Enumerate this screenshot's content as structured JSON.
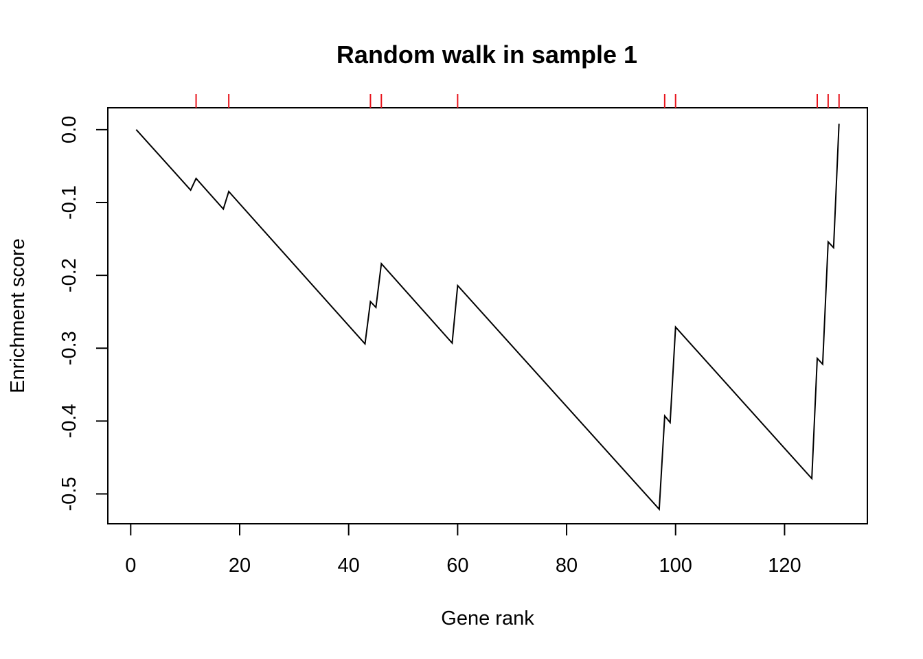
{
  "chart_data": {
    "type": "line",
    "title": "Random walk in sample 1",
    "xlabel": "Gene rank",
    "ylabel": "Enrichment score",
    "xlim": [
      -4.2,
      135.2
    ],
    "ylim": [
      -0.541,
      0.03
    ],
    "x_ticks": [
      0,
      20,
      40,
      60,
      80,
      100,
      120
    ],
    "y_ticks": [
      0.0,
      -0.1,
      -0.2,
      -0.3,
      -0.4,
      -0.5
    ],
    "y_tick_labels": [
      "0.0",
      "-0.1",
      "-0.2",
      "-0.3",
      "-0.4",
      "-0.5"
    ],
    "grid": false,
    "legend": "none",
    "series": [
      {
        "color": "#000000",
        "points": [
          [
            1,
            0.0
          ],
          [
            11,
            -0.083
          ],
          [
            12,
            -0.067
          ],
          [
            17,
            -0.109
          ],
          [
            18,
            -0.085
          ],
          [
            43,
            -0.294
          ],
          [
            44,
            -0.236
          ],
          [
            45,
            -0.244
          ],
          [
            46,
            -0.184
          ],
          [
            59,
            -0.293
          ],
          [
            60,
            -0.214
          ],
          [
            97,
            -0.521
          ],
          [
            98,
            -0.393
          ],
          [
            99,
            -0.402
          ],
          [
            100,
            -0.271
          ],
          [
            125,
            -0.479
          ],
          [
            126,
            -0.314
          ],
          [
            127,
            -0.322
          ],
          [
            128,
            -0.154
          ],
          [
            129,
            -0.162
          ],
          [
            130,
            0.008
          ]
        ]
      }
    ],
    "rug": {
      "color": "#e8141c",
      "positions": [
        12,
        18,
        44,
        46,
        60,
        98,
        100,
        126,
        128,
        130
      ]
    }
  }
}
